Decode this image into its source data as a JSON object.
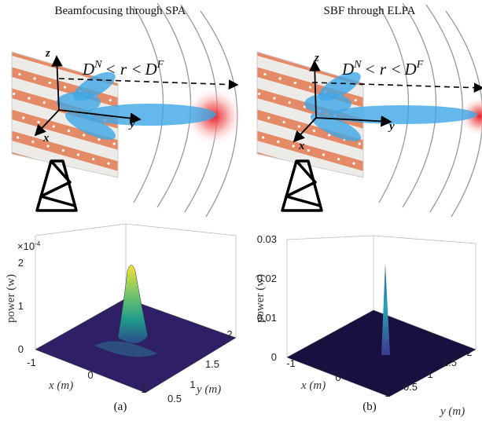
{
  "panels": [
    {
      "title": "Beamfocusing through SPA",
      "range_label": {
        "base1": "D",
        "sup1": "N",
        "mid": "< r <",
        "base2": "D",
        "sup2": "F"
      },
      "axes": {
        "z": "z",
        "x": "x",
        "y": "y"
      },
      "plot": {
        "zlabel": "power (w)",
        "exponent": {
          "base": "×10",
          "exp": "-4"
        },
        "zticks": [
          0,
          1,
          2
        ],
        "xlabel": "x (m)",
        "xticks": [
          -1,
          0,
          1
        ],
        "ylabel": "y (m)",
        "yticks": [
          0.5,
          1,
          1.5,
          2
        ]
      },
      "caption": "(a)"
    },
    {
      "title": "SBF through ELPA",
      "range_label": {
        "base1": "D",
        "sup1": "N",
        "mid": "< r <",
        "base2": "D",
        "sup2": "F"
      },
      "axes": {
        "z": "z",
        "x": "x",
        "y": "y"
      },
      "plot": {
        "zlabel": "power (w)",
        "zticks": [
          0,
          0.01,
          0.02,
          0.03
        ],
        "xlabel": "x (m)",
        "xticks": [
          -1,
          0,
          1
        ],
        "ylabel": "y (m)",
        "yticks": [
          0.5,
          1,
          1.5,
          2
        ]
      },
      "caption": "(b)"
    }
  ]
}
